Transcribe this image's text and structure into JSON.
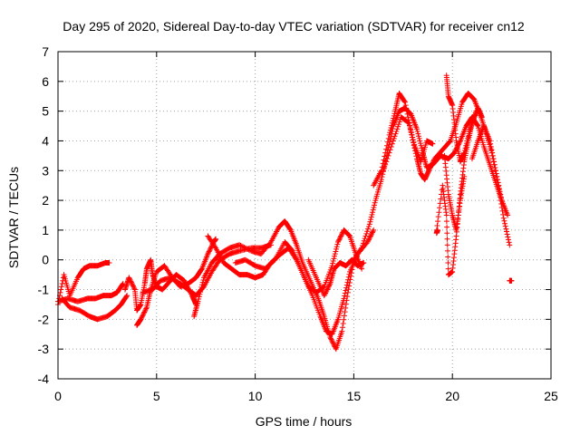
{
  "chart_data": {
    "type": "scatter",
    "title": "Day 295 of 2020, Sidereal Day-to-day VTEC variation (SDTVAR) for receiver cn12",
    "xlabel": "GPS time / hours",
    "ylabel": "SDTVAR / TECUs",
    "xlim": [
      0,
      25
    ],
    "ylim": [
      -4,
      7
    ],
    "xticks": [
      0,
      5,
      10,
      15,
      20,
      25
    ],
    "yticks": [
      -4,
      -3,
      -2,
      -1,
      0,
      1,
      2,
      3,
      4,
      5,
      6,
      7
    ],
    "grid": true,
    "marker": "+",
    "color": "#ff0000",
    "series": [
      {
        "name": "",
        "traces": [
          [
            [
              0.0,
              -1.5
            ],
            [
              0.3,
              -0.5
            ],
            [
              0.6,
              -1.2
            ],
            [
              1.0,
              -0.6
            ],
            [
              1.3,
              -0.3
            ],
            [
              1.6,
              -0.2
            ],
            [
              2.0,
              -0.2
            ],
            [
              2.4,
              -0.1
            ],
            [
              2.6,
              -0.1
            ]
          ],
          [
            [
              0.0,
              -1.4
            ],
            [
              0.5,
              -1.3
            ],
            [
              1.0,
              -1.4
            ],
            [
              1.5,
              -1.3
            ],
            [
              1.9,
              -1.3
            ],
            [
              2.3,
              -1.2
            ],
            [
              2.7,
              -1.2
            ],
            [
              3.0,
              -1.1
            ],
            [
              3.3,
              -0.8
            ]
          ],
          [
            [
              0.2,
              -1.3
            ],
            [
              0.6,
              -1.6
            ],
            [
              1.1,
              -1.7
            ],
            [
              1.6,
              -1.9
            ],
            [
              2.0,
              -2.0
            ],
            [
              2.5,
              -1.9
            ],
            [
              2.9,
              -1.7
            ],
            [
              3.2,
              -1.5
            ],
            [
              3.5,
              -1.2
            ]
          ],
          [
            [
              3.4,
              -1.0
            ],
            [
              3.6,
              -0.6
            ],
            [
              3.9,
              -1.0
            ],
            [
              4.0,
              -1.7
            ],
            [
              4.2,
              -1.5
            ],
            [
              4.4,
              -0.8
            ],
            [
              4.5,
              -0.3
            ],
            [
              4.7,
              0.0
            ],
            [
              4.8,
              -0.5
            ],
            [
              5.0,
              -0.9
            ],
            [
              5.3,
              -1.0
            ],
            [
              5.7,
              -0.7
            ],
            [
              6.0,
              -0.5
            ],
            [
              6.4,
              -0.7
            ],
            [
              6.8,
              -1.2
            ],
            [
              7.0,
              -1.5
            ]
          ],
          [
            [
              4.0,
              -2.2
            ],
            [
              4.2,
              -2.0
            ],
            [
              4.5,
              -1.6
            ],
            [
              4.7,
              -1.0
            ],
            [
              5.0,
              -0.4
            ],
            [
              5.4,
              -0.2
            ],
            [
              5.8,
              -0.6
            ],
            [
              6.2,
              -0.9
            ],
            [
              6.6,
              -0.8
            ],
            [
              7.0,
              -0.6
            ],
            [
              7.3,
              -0.3
            ],
            [
              7.6,
              0.2
            ],
            [
              7.9,
              0.6
            ],
            [
              8.0,
              0.7
            ]
          ],
          [
            [
              4.3,
              -1.1
            ],
            [
              4.8,
              -1.0
            ],
            [
              5.2,
              -0.7
            ],
            [
              5.7,
              -0.6
            ],
            [
              6.2,
              -0.8
            ],
            [
              6.6,
              -1.0
            ],
            [
              7.0,
              -1.2
            ],
            [
              7.4,
              -0.9
            ],
            [
              7.8,
              -0.4
            ],
            [
              8.2,
              0.0
            ],
            [
              8.7,
              0.2
            ],
            [
              9.2,
              0.3
            ],
            [
              9.8,
              0.4
            ],
            [
              10.3,
              0.4
            ],
            [
              10.8,
              0.5
            ]
          ],
          [
            [
              6.9,
              -1.9
            ],
            [
              7.1,
              -1.4
            ],
            [
              7.4,
              -0.6
            ],
            [
              7.8,
              -0.1
            ],
            [
              8.2,
              0.2
            ],
            [
              8.7,
              0.4
            ],
            [
              9.2,
              0.5
            ],
            [
              9.8,
              0.3
            ],
            [
              10.3,
              0.2
            ],
            [
              10.8,
              0.6
            ],
            [
              11.2,
              1.1
            ],
            [
              11.5,
              1.3
            ],
            [
              11.8,
              1.0
            ],
            [
              12.1,
              0.5
            ],
            [
              12.4,
              -0.1
            ],
            [
              12.8,
              -0.7
            ],
            [
              13.2,
              -1.3
            ],
            [
              13.5,
              -1.9
            ],
            [
              13.8,
              -2.6
            ],
            [
              14.1,
              -3.0
            ],
            [
              14.4,
              -2.4
            ],
            [
              14.7,
              -1.1
            ],
            [
              15.0,
              0.0
            ]
          ],
          [
            [
              7.6,
              0.8
            ],
            [
              8.0,
              0.4
            ],
            [
              8.4,
              -0.1
            ],
            [
              8.8,
              -0.3
            ],
            [
              9.2,
              -0.5
            ],
            [
              9.6,
              -0.5
            ],
            [
              10.0,
              -0.6
            ],
            [
              10.4,
              -0.5
            ],
            [
              10.8,
              -0.1
            ],
            [
              11.3,
              0.2
            ],
            [
              11.7,
              0.4
            ],
            [
              12.1,
              0.0
            ],
            [
              12.5,
              -0.6
            ],
            [
              12.9,
              -1.2
            ],
            [
              13.3,
              -1.9
            ],
            [
              13.6,
              -2.4
            ],
            [
              13.9,
              -2.5
            ],
            [
              14.2,
              -2.0
            ],
            [
              14.5,
              -1.3
            ],
            [
              14.8,
              -0.4
            ],
            [
              15.2,
              0.2
            ],
            [
              15.7,
              0.6
            ],
            [
              16.0,
              1.0
            ]
          ],
          [
            [
              9.0,
              -0.1
            ],
            [
              9.5,
              0.0
            ],
            [
              10.0,
              -0.2
            ],
            [
              10.5,
              -0.3
            ],
            [
              11.0,
              0.0
            ],
            [
              11.5,
              0.6
            ],
            [
              11.9,
              0.3
            ],
            [
              12.3,
              -0.3
            ],
            [
              12.7,
              -0.9
            ],
            [
              13.1,
              -1.1
            ],
            [
              13.5,
              -0.9
            ],
            [
              13.9,
              -0.2
            ],
            [
              14.2,
              0.6
            ],
            [
              14.5,
              1.0
            ],
            [
              14.8,
              0.8
            ],
            [
              15.1,
              0.2
            ],
            [
              15.4,
              -0.3
            ]
          ],
          [
            [
              12.7,
              0.0
            ],
            [
              13.1,
              -0.6
            ],
            [
              13.5,
              -1.2
            ],
            [
              13.8,
              -0.8
            ],
            [
              14.0,
              -0.3
            ],
            [
              14.3,
              -0.1
            ],
            [
              14.6,
              -0.2
            ],
            [
              14.9,
              0.0
            ],
            [
              15.2,
              -0.2
            ],
            [
              15.5,
              -0.1
            ]
          ],
          [
            [
              15.0,
              0.0
            ],
            [
              15.4,
              0.4
            ],
            [
              15.8,
              1.2
            ],
            [
              16.1,
              2.0
            ],
            [
              16.4,
              2.7
            ],
            [
              16.7,
              3.6
            ],
            [
              17.0,
              4.5
            ],
            [
              17.3,
              5.0
            ],
            [
              17.6,
              5.1
            ],
            [
              17.9,
              4.9
            ],
            [
              18.2,
              4.4
            ],
            [
              18.5,
              3.6
            ],
            [
              18.7,
              3.1
            ],
            [
              19.0,
              3.2
            ],
            [
              19.4,
              3.5
            ],
            [
              19.8,
              3.4
            ],
            [
              20.1,
              3.6
            ],
            [
              20.4,
              4.0
            ],
            [
              20.7,
              4.5
            ],
            [
              21.0,
              4.8
            ],
            [
              21.3,
              4.5
            ],
            [
              21.6,
              3.8
            ],
            [
              21.9,
              3.2
            ],
            [
              22.2,
              2.6
            ],
            [
              22.5,
              2.0
            ],
            [
              22.8,
              1.5
            ]
          ],
          [
            [
              16.0,
              2.5
            ],
            [
              16.4,
              3.0
            ],
            [
              16.8,
              4.2
            ],
            [
              17.1,
              5.0
            ],
            [
              17.3,
              5.6
            ],
            [
              17.6,
              5.3
            ],
            [
              17.9,
              4.3
            ],
            [
              18.2,
              3.4
            ],
            [
              18.4,
              2.9
            ],
            [
              18.6,
              2.7
            ],
            [
              18.8,
              3.0
            ],
            [
              19.1,
              3.4
            ],
            [
              19.5,
              3.7
            ],
            [
              19.9,
              4.0
            ],
            [
              20.2,
              4.6
            ],
            [
              20.5,
              5.3
            ],
            [
              20.8,
              5.6
            ],
            [
              21.1,
              5.4
            ],
            [
              21.4,
              4.9
            ],
            [
              21.7,
              4.3
            ],
            [
              22.0,
              3.6
            ],
            [
              22.3,
              2.6
            ],
            [
              22.6,
              1.4
            ],
            [
              22.9,
              0.5
            ]
          ],
          [
            [
              16.5,
              3.0
            ],
            [
              17.0,
              4.0
            ],
            [
              17.4,
              4.8
            ],
            [
              17.8,
              4.6
            ],
            [
              18.1,
              3.8
            ],
            [
              18.4,
              3.3
            ],
            [
              18.7,
              4.0
            ],
            [
              19.0,
              3.9
            ]
          ],
          [
            [
              19.2,
              1.0
            ],
            [
              19.5,
              2.5
            ],
            [
              19.7,
              1.5
            ],
            [
              19.8,
              -0.5
            ],
            [
              20.0,
              -0.4
            ],
            [
              20.2,
              0.8
            ],
            [
              20.4,
              2.2
            ],
            [
              20.6,
              3.3
            ],
            [
              20.8,
              4.0
            ],
            [
              21.0,
              4.6
            ],
            [
              21.3,
              5.1
            ],
            [
              21.5,
              4.8
            ]
          ],
          [
            [
              19.7,
              6.2
            ],
            [
              19.8,
              5.5
            ],
            [
              20.0,
              5.2
            ],
            [
              20.2,
              4.0
            ],
            [
              20.4,
              3.3
            ],
            [
              20.6,
              3.6
            ],
            [
              20.9,
              4.4
            ],
            [
              21.2,
              5.0
            ]
          ],
          [
            [
              19.6,
              3.5
            ],
            [
              19.8,
              2.2
            ],
            [
              20.0,
              1.5
            ],
            [
              20.2,
              1.0
            ],
            [
              20.4,
              2.0
            ],
            [
              20.6,
              2.8
            ]
          ],
          [
            [
              21.0,
              3.4
            ],
            [
              21.3,
              4.0
            ],
            [
              21.6,
              4.5
            ],
            [
              21.9,
              4.0
            ],
            [
              22.2,
              3.0
            ],
            [
              22.5,
              2.0
            ]
          ],
          [
            [
              22.9,
              -0.7
            ],
            [
              23.0,
              -0.7
            ]
          ],
          [
            [
              19.2,
              0.9
            ],
            [
              19.25,
              1.0
            ]
          ]
        ]
      }
    ]
  }
}
